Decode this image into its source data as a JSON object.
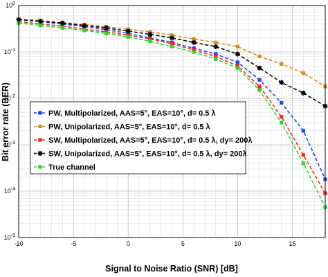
{
  "chart_data": {
    "type": "line",
    "xlabel": "Signal to Noise Ratio (SNR) [dB]",
    "ylabel": "Bit error rate (BER)",
    "xlim": [
      -10,
      18
    ],
    "ylim": [
      1e-05,
      1
    ],
    "yscale": "log",
    "grid": true,
    "legend_position": "center-left",
    "x_ticks": [
      -10,
      -5,
      0,
      5,
      10,
      15
    ],
    "y_tick_labels": [
      {
        "base": "10",
        "exp": "0",
        "value": 1
      },
      {
        "base": "10",
        "exp": "-1",
        "value": 0.1
      },
      {
        "base": "10",
        "exp": "-2",
        "value": 0.01
      },
      {
        "base": "10",
        "exp": "-3",
        "value": 0.001
      },
      {
        "base": "10",
        "exp": "-4",
        "value": 0.0001
      },
      {
        "base": "10",
        "exp": "-5",
        "value": 1e-05
      }
    ],
    "x": [
      -10,
      -8,
      -6,
      -4,
      -2,
      0,
      2,
      4,
      6,
      8,
      10,
      12,
      14,
      16,
      18
    ],
    "series": [
      {
        "name": "PW, Multipolarized, AAS=5°, EAS=10°, d= 0.5 λ",
        "color": "#1f3fff",
        "marker": "square",
        "values": [
          0.5,
          0.45,
          0.4,
          0.35,
          0.3,
          0.25,
          0.2,
          0.16,
          0.12,
          0.09,
          0.06,
          0.025,
          0.008,
          0.002,
          0.00018
        ]
      },
      {
        "name": "PW, Unipolarized, AAS=5°, EAS=10°, d= 0.5 λ",
        "color": "#d98a1a",
        "marker": "square",
        "values": [
          0.5,
          0.47,
          0.43,
          0.39,
          0.35,
          0.31,
          0.27,
          0.23,
          0.19,
          0.16,
          0.13,
          0.08,
          0.055,
          0.035,
          0.018
        ]
      },
      {
        "name": "SW, Multipolarized, AAS=5°, EAS=10°, d= 0.5 λ, dy= 200λ",
        "color": "#ff2020",
        "marker": "square",
        "values": [
          0.45,
          0.4,
          0.36,
          0.31,
          0.27,
          0.23,
          0.19,
          0.15,
          0.11,
          0.08,
          0.05,
          0.018,
          0.004,
          0.0006,
          9e-05
        ]
      },
      {
        "name": "SW, Unipolarized, AAS=5°, EAS=10°, d= 0.5 λ, dy= 200λ",
        "color": "#000000",
        "marker": "star",
        "values": [
          0.5,
          0.46,
          0.42,
          0.37,
          0.33,
          0.28,
          0.24,
          0.2,
          0.16,
          0.13,
          0.09,
          0.045,
          0.022,
          0.013,
          0.0068
        ]
      },
      {
        "name": "True channel",
        "color": "#22dd22",
        "marker": "square",
        "values": [
          0.42,
          0.37,
          0.33,
          0.29,
          0.25,
          0.21,
          0.17,
          0.13,
          0.1,
          0.07,
          0.045,
          0.015,
          0.003,
          0.0004,
          4.5e-05
        ]
      }
    ]
  }
}
